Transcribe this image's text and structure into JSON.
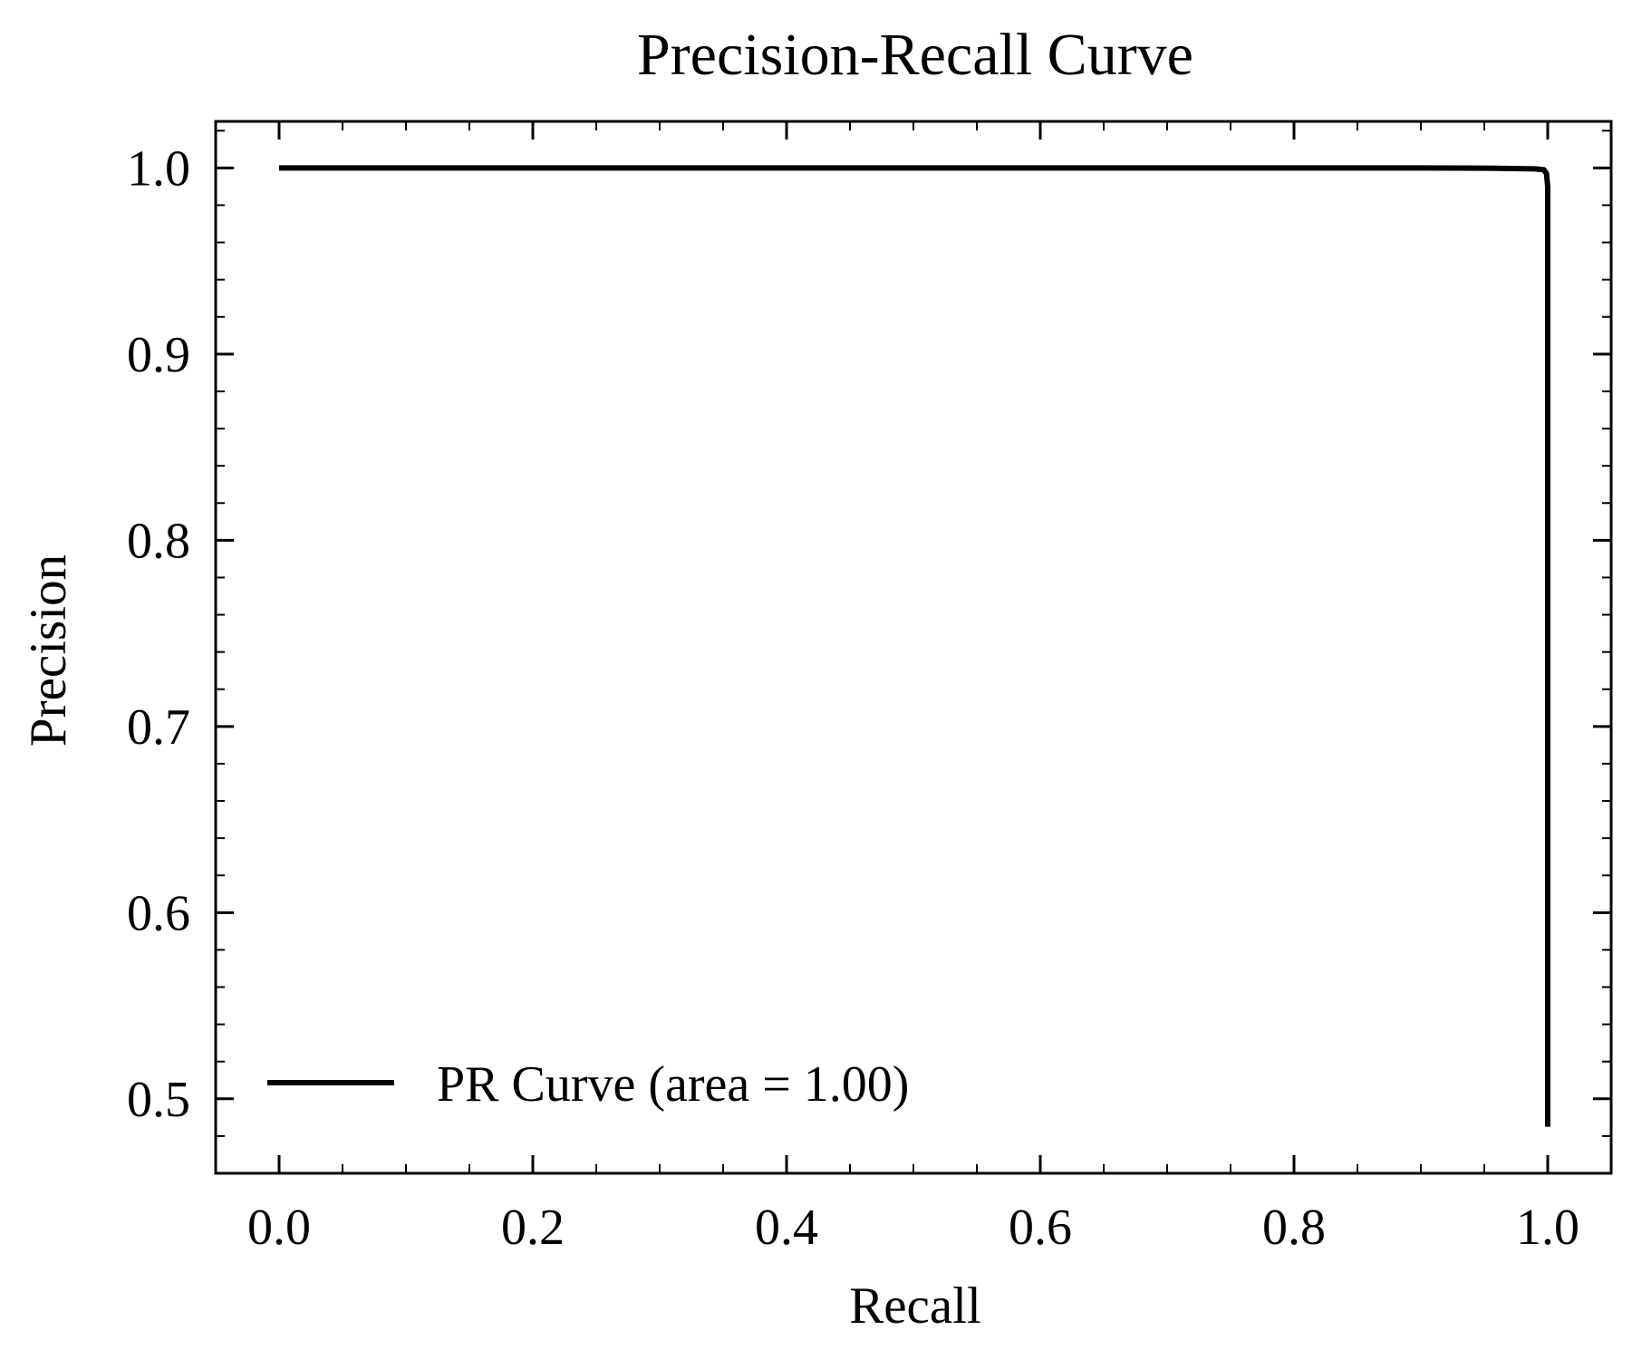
{
  "chart_data": {
    "type": "line",
    "title": "Precision-Recall Curve",
    "xlabel": "Recall",
    "ylabel": "Precision",
    "xlim": [
      -0.05,
      1.05
    ],
    "ylim": [
      0.46,
      1.025
    ],
    "x_ticks": [
      0.0,
      0.2,
      0.4,
      0.6,
      0.8,
      1.0
    ],
    "x_tick_labels": [
      "0.0",
      "0.2",
      "0.4",
      "0.6",
      "0.8",
      "1.0"
    ],
    "y_ticks": [
      0.5,
      0.6,
      0.7,
      0.8,
      0.9,
      1.0
    ],
    "y_tick_labels": [
      "0.5",
      "0.6",
      "0.7",
      "0.8",
      "0.9",
      "1.0"
    ],
    "x_minor_step": 0.05,
    "y_minor_step": 0.02,
    "grid": false,
    "legend_position": "lower-left",
    "series": [
      {
        "name": "PR Curve (area = 1.00)",
        "color": "#000000",
        "x": [
          0.0,
          0.2,
          0.4,
          0.6,
          0.8,
          0.9,
          0.95,
          0.99,
          0.997,
          0.999,
          1.0,
          1.0,
          1.0,
          1.0
        ],
        "y": [
          1.0,
          1.0,
          1.0,
          1.0,
          1.0,
          1.0,
          0.9999,
          0.9995,
          0.999,
          0.997,
          0.99,
          0.95,
          0.7,
          0.485
        ]
      }
    ]
  }
}
